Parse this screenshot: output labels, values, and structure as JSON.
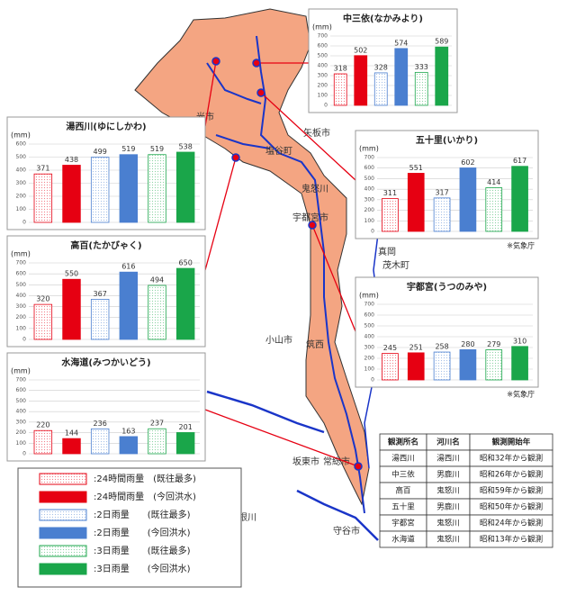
{
  "chart_data": [
    {
      "type": "bar",
      "title": "中三依(なかみより)",
      "y_label": "(mm)",
      "values": [
        318,
        502,
        328,
        574,
        333,
        589
      ],
      "ylim": [
        0,
        700
      ],
      "yticks": [
        0,
        100,
        200,
        300,
        400,
        500,
        600,
        700
      ]
    },
    {
      "type": "bar",
      "title": "湯西川(ゆにしかわ)",
      "y_label": "(mm)",
      "values": [
        371,
        438,
        499,
        519,
        519,
        538
      ],
      "ylim": [
        0,
        600
      ],
      "yticks": [
        0,
        100,
        200,
        300,
        400,
        500,
        600
      ]
    },
    {
      "type": "bar",
      "title": "五十里(いかり)",
      "y_label": "(mm)",
      "values": [
        311,
        551,
        317,
        602,
        414,
        617
      ],
      "ylim": [
        0,
        700
      ],
      "yticks": [
        0,
        100,
        200,
        300,
        400,
        500,
        600,
        700
      ],
      "source": "※気象庁"
    },
    {
      "type": "bar",
      "title": "高百(たかびゃく)",
      "y_label": "(mm)",
      "values": [
        320,
        550,
        367,
        616,
        494,
        650
      ],
      "ylim": [
        0,
        700
      ],
      "yticks": [
        0,
        100,
        200,
        300,
        400,
        500,
        600,
        700
      ]
    },
    {
      "type": "bar",
      "title": "宇都宮(うつのみや)",
      "y_label": "(mm)",
      "values": [
        245,
        251,
        258,
        280,
        279,
        310
      ],
      "ylim": [
        0,
        700
      ],
      "yticks": [
        0,
        100,
        200,
        300,
        400,
        500,
        600,
        700
      ],
      "source": "※気象庁"
    },
    {
      "type": "bar",
      "title": "水海道(みつかいどう)",
      "y_label": "(mm)",
      "values": [
        220,
        144,
        236,
        163,
        237,
        201
      ],
      "ylim": [
        0,
        700
      ],
      "yticks": [
        0,
        100,
        200,
        300,
        400,
        500,
        600,
        700
      ]
    }
  ],
  "legend": {
    "items": [
      {
        "label": ":24時間雨量　(既往最多)",
        "color": "#e60012",
        "style": "dotted"
      },
      {
        "label": ":24時間雨量　(今回洪水)",
        "color": "#e60012",
        "style": "solid"
      },
      {
        "label": ":2日雨量　　(既往最多)",
        "color": "#4a7fd0",
        "style": "dotted"
      },
      {
        "label": ":2日雨量　　(今回洪水)",
        "color": "#4a7fd0",
        "style": "solid"
      },
      {
        "label": ":3日雨量　　(既往最多)",
        "color": "#1aa64a",
        "style": "dotted"
      },
      {
        "label": ":3日雨量　　(今回洪水)",
        "color": "#1aa64a",
        "style": "solid"
      }
    ]
  },
  "table": {
    "header": [
      "観測所名",
      "河川名",
      "観測開始年"
    ],
    "rows": [
      [
        "湯西川",
        "湯西川",
        "昭和32年から観測"
      ],
      [
        "中三依",
        "男鹿川",
        "昭和26年から観測"
      ],
      [
        "高百",
        "鬼怒川",
        "昭和59年から観測"
      ],
      [
        "五十里",
        "男鹿川",
        "昭和50年から観測"
      ],
      [
        "宇都宮",
        "鬼怒川",
        "昭和24年から観測"
      ],
      [
        "水海道",
        "鬼怒川",
        "昭和13年から観測"
      ]
    ]
  },
  "map_labels": [
    "矢板市",
    "塩谷町",
    "宇都宮市",
    "光市",
    "小山市",
    "筑西",
    "常総市",
    "坂東市",
    "守谷市",
    "真岡",
    "茂木町",
    "利根川",
    "鬼怒川"
  ]
}
